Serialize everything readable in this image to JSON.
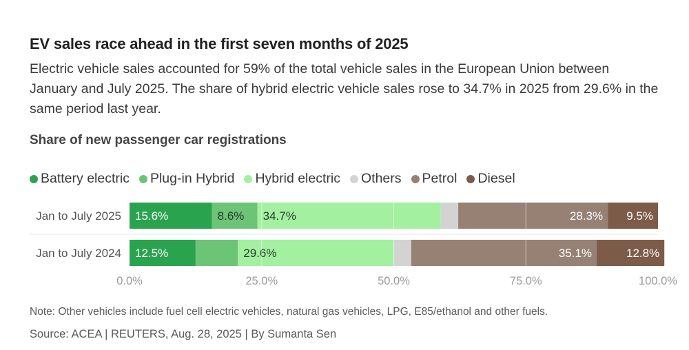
{
  "title": "EV sales race ahead in the first seven months of 2025",
  "subtitle": "Electric vehicle sales accounted for 59% of the total vehicle sales in the European Union between January and July 2025. The share of hybrid electric vehicle sales rose to 34.7% in 2025 from 29.6% in the same period last year.",
  "chart_title": "Share of new passenger car registrations",
  "legend": [
    {
      "label": "Battery electric",
      "color": "#2aa34e"
    },
    {
      "label": "Plug-in Hybrid",
      "color": "#6cc476"
    },
    {
      "label": "Hybrid electric",
      "color": "#a3f0a0"
    },
    {
      "label": "Others",
      "color": "#d3d3d3"
    },
    {
      "label": "Petrol",
      "color": "#978175"
    },
    {
      "label": "Diesel",
      "color": "#7c5b48"
    }
  ],
  "chart_data": {
    "type": "bar",
    "orientation": "horizontal",
    "stacked": true,
    "title": "Share of new passenger car registrations",
    "categories": [
      "Jan to July 2025",
      "Jan to July 2024"
    ],
    "series": [
      {
        "name": "Battery electric",
        "values": [
          15.6,
          12.5
        ],
        "labels": [
          "15.6%",
          "12.5%"
        ]
      },
      {
        "name": "Plug-in Hybrid",
        "values": [
          8.6,
          8.0
        ],
        "labels": [
          "8.6%",
          ""
        ]
      },
      {
        "name": "Hybrid electric",
        "values": [
          34.7,
          29.6
        ],
        "labels": [
          "34.7%",
          "29.6%"
        ]
      },
      {
        "name": "Others",
        "values": [
          3.3,
          3.2
        ],
        "labels": [
          "",
          ""
        ]
      },
      {
        "name": "Petrol",
        "values": [
          28.3,
          35.1
        ],
        "labels": [
          "28.3%",
          "35.1%"
        ]
      },
      {
        "name": "Diesel",
        "values": [
          9.5,
          12.8
        ],
        "labels": [
          "9.5%",
          "12.8%"
        ]
      }
    ],
    "x_ticks": [
      "0.0%",
      "25.0%",
      "50.0%",
      "75.0%",
      "100.0%"
    ],
    "x_tick_values": [
      0,
      25,
      50,
      75,
      100
    ],
    "xlim": [
      0,
      100
    ]
  },
  "note": "Note: Other vehicles include fuel cell electric vehicles, natural gas vehicles, LPG, E85/ethanol and other fuels.",
  "source": "Source: ACEA | REUTERS, Aug. 28, 2025 | By Sumanta Sen"
}
